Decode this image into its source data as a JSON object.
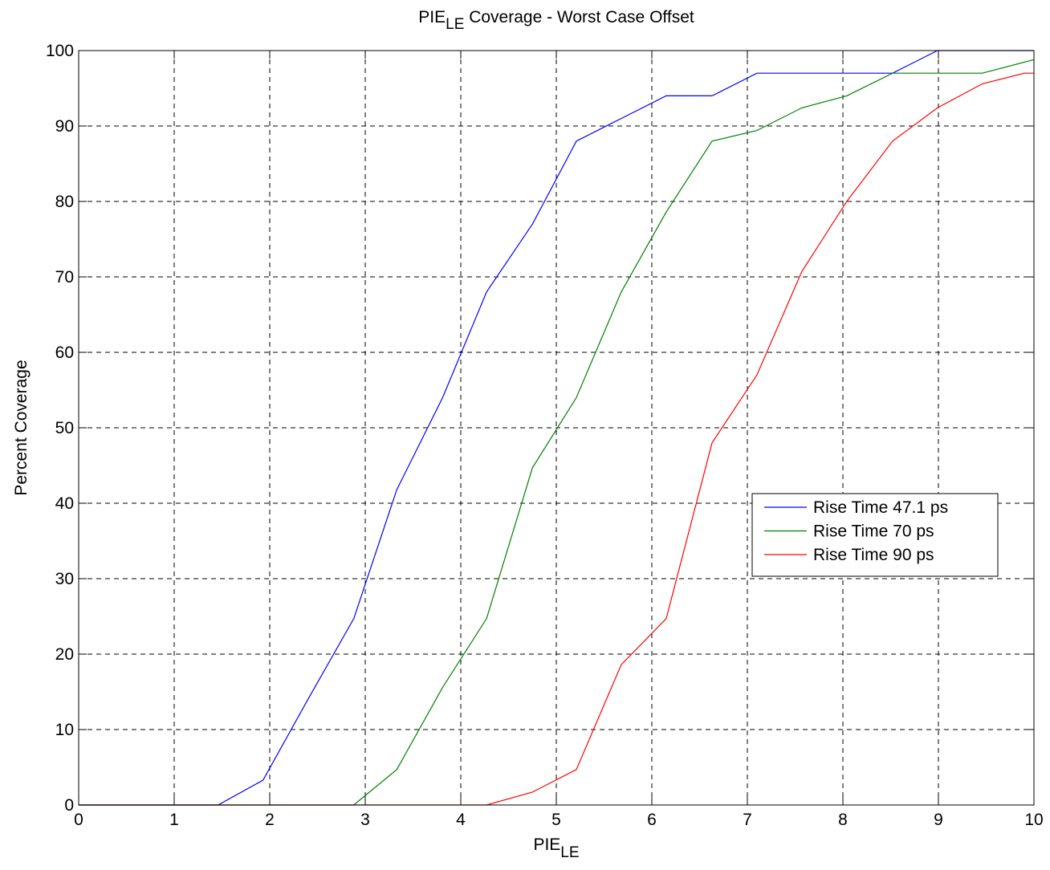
{
  "chart_data": {
    "type": "line",
    "title": {
      "main": "PIE",
      "sub": "LE",
      "rest": " Coverage - Worst Case Offset"
    },
    "xlabel": {
      "main": "PIE",
      "sub": "LE"
    },
    "ylabel": "Percent Coverage",
    "xlim": [
      0,
      10
    ],
    "ylim": [
      0,
      100
    ],
    "xticks": [
      "0",
      "1",
      "2",
      "3",
      "4",
      "5",
      "6",
      "7",
      "8",
      "9",
      "10"
    ],
    "yticks": [
      "0",
      "10",
      "20",
      "30",
      "40",
      "50",
      "60",
      "70",
      "80",
      "90",
      "100"
    ],
    "grid": true,
    "legend_position": "right",
    "series": [
      {
        "name": "Rise Time 47.1 ps",
        "color": "#0000ff",
        "x": [
          0,
          1.46,
          1.93,
          2.4,
          2.88,
          3.33,
          3.81,
          4.27,
          4.75,
          5.21,
          5.68,
          6.15,
          6.63,
          7.1,
          7.57,
          8.04,
          8.52,
          8.99,
          9.46,
          10
        ],
        "y": [
          0,
          0,
          3.3,
          14,
          24.7,
          41.8,
          54,
          68,
          77,
          88,
          91,
          94,
          94,
          97,
          97,
          97,
          97,
          100,
          100,
          100
        ]
      },
      {
        "name": "Rise Time 70 ps",
        "color": "#008000",
        "x": [
          0,
          2.88,
          3.33,
          3.81,
          4.27,
          4.75,
          5.21,
          5.68,
          6.15,
          6.63,
          7.1,
          7.57,
          8.04,
          8.52,
          8.99,
          9.46,
          10
        ],
        "y": [
          0,
          0,
          4.7,
          15.6,
          24.7,
          44.7,
          54,
          68,
          78.6,
          88,
          89.4,
          92.4,
          94,
          97,
          97,
          97,
          98.8
        ]
      },
      {
        "name": "Rise Time 90 ps",
        "color": "#ff0000",
        "x": [
          0,
          4.27,
          4.75,
          5.21,
          5.68,
          6.15,
          6.63,
          7.1,
          7.57,
          8.04,
          8.52,
          8.99,
          9.46,
          9.9,
          10
        ],
        "y": [
          0,
          0,
          1.7,
          4.7,
          18.6,
          24.7,
          48,
          57,
          70.7,
          80,
          88,
          92.4,
          95.6,
          97,
          97
        ]
      }
    ]
  }
}
